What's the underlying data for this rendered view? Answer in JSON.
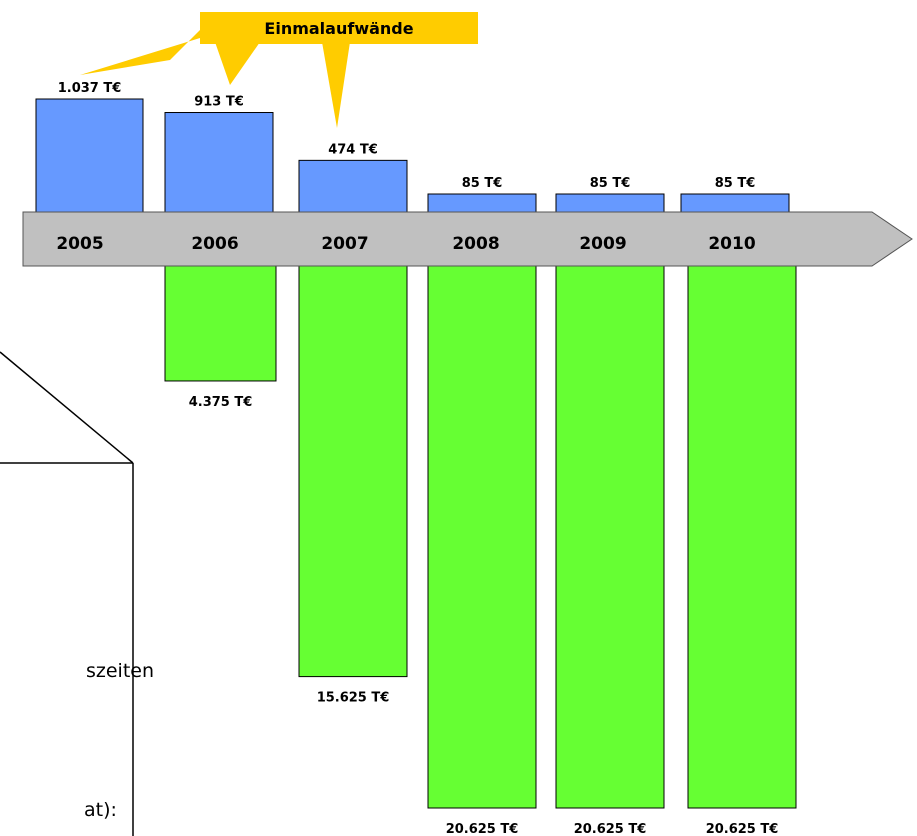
{
  "chart_data": {
    "type": "bar",
    "title": "",
    "xlabel": "",
    "ylabel": "",
    "unit": "T€",
    "categories": [
      "2005",
      "2006",
      "2007",
      "2008",
      "2009",
      "2010"
    ],
    "series": [
      {
        "values": [
          1037,
          913,
          474,
          85,
          85,
          85
        ],
        "labels": [
          "1.037 T€",
          "913 T€",
          "474 T€",
          "85 T€",
          "85 T€",
          "85 T€"
        ],
        "color": "#6699ff",
        "direction": "up"
      },
      {
        "values": [
          null,
          4375,
          15625,
          20625,
          20625,
          20625
        ],
        "labels": [
          "",
          "4.375 T€",
          "15.625 T€",
          "20.625 T€",
          "20.625 T€",
          "20.625 T€"
        ],
        "color": "#66ff33",
        "direction": "down"
      }
    ],
    "callout": {
      "text": "Einmalaufwände",
      "fill": "#ffcc00",
      "points_to": [
        "2005",
        "2006",
        "2007"
      ]
    },
    "axis_color": "#c0c0c0"
  },
  "overlay": {
    "fragment_1": "szeiten",
    "fragment_2": "at):"
  }
}
